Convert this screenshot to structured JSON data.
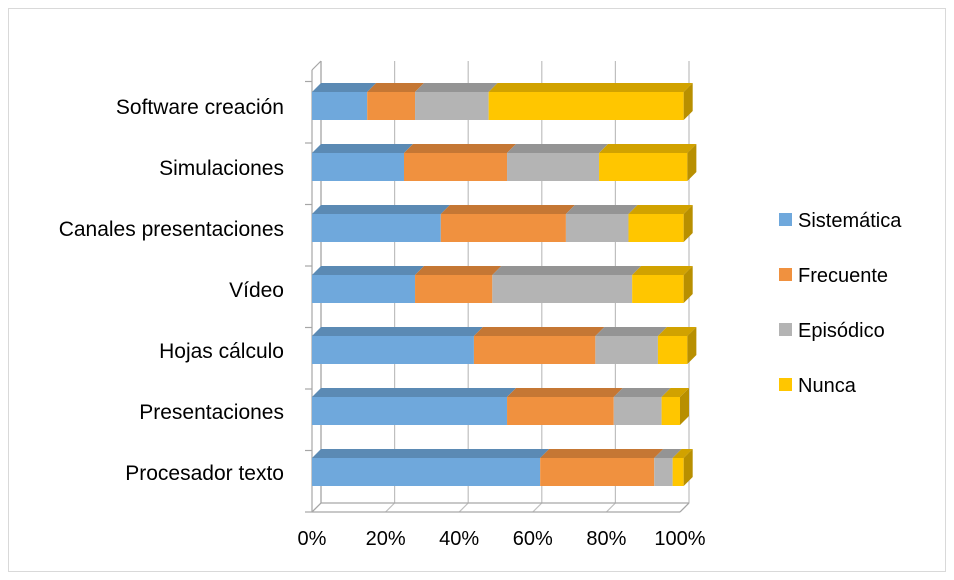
{
  "chart_data": {
    "type": "bar",
    "orientation": "horizontal",
    "stacked": "percent",
    "style": "3d",
    "categories": [
      "Procesador texto",
      "Presentaciones",
      "Hojas cálculo",
      "Vídeo",
      "Canales presentaciones",
      "Simulaciones",
      "Software creación"
    ],
    "series": [
      {
        "name": "Sistemática",
        "color": "#6fa8dc",
        "values": [
          62,
          53,
          44,
          28,
          35,
          25,
          15
        ]
      },
      {
        "name": "Frecuente",
        "color": "#f0913f",
        "values": [
          31,
          29,
          33,
          21,
          34,
          28,
          13
        ]
      },
      {
        "name": "Episódico",
        "color": "#b4b4b4",
        "values": [
          5,
          13,
          17,
          38,
          17,
          25,
          20
        ]
      },
      {
        "name": "Nunca",
        "color": "#ffc600",
        "values": [
          3,
          5,
          8,
          14,
          15,
          24,
          53
        ]
      }
    ],
    "x_ticks": [
      "0%",
      "20%",
      "40%",
      "60%",
      "80%",
      "100%"
    ],
    "xlim": [
      0,
      100
    ],
    "grid": true,
    "legend": "right"
  }
}
